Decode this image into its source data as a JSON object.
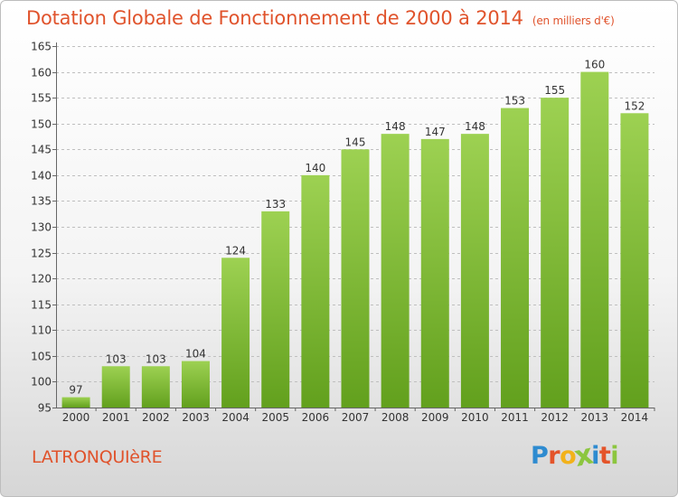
{
  "header": {
    "title": "Dotation Globale de Fonctionnement de 2000 à 2014",
    "subtitle": "(en milliers d'€)"
  },
  "footer": {
    "commune": "LATRONQUIèRE",
    "logo_text": "Proxiti",
    "logo_letters": [
      {
        "char": "P",
        "color": "#2e8bd0"
      },
      {
        "char": "r",
        "color": "#e4542a"
      },
      {
        "char": "o",
        "color": "#f2b21b"
      },
      {
        "char": "x",
        "color": "#8cc63f"
      },
      {
        "char": "i",
        "color": "#2e8bd0"
      },
      {
        "char": "t",
        "color": "#e4542a"
      },
      {
        "char": "i",
        "color": "#8cc63f"
      }
    ]
  },
  "colors": {
    "bar_top": "#9dd152",
    "bar_bottom": "#62a01d",
    "axis": "#666666",
    "grid": "#bfbfbf",
    "text": "#333333"
  },
  "chart_data": {
    "type": "bar",
    "title": "Dotation Globale de Fonctionnement de 2000 à 2014",
    "subtitle": "(en milliers d'€)",
    "categories": [
      "2000",
      "2001",
      "2002",
      "2003",
      "2004",
      "2005",
      "2006",
      "2007",
      "2008",
      "2009",
      "2010",
      "2011",
      "2012",
      "2013",
      "2014"
    ],
    "values": [
      97,
      103,
      103,
      104,
      124,
      133,
      140,
      145,
      148,
      147,
      148,
      153,
      155,
      160,
      152
    ],
    "ylim": [
      95,
      165
    ],
    "yticks": [
      95,
      100,
      105,
      110,
      115,
      120,
      125,
      130,
      135,
      140,
      145,
      150,
      155,
      160,
      165
    ],
    "xlabel": "",
    "ylabel": "",
    "grid": true
  }
}
